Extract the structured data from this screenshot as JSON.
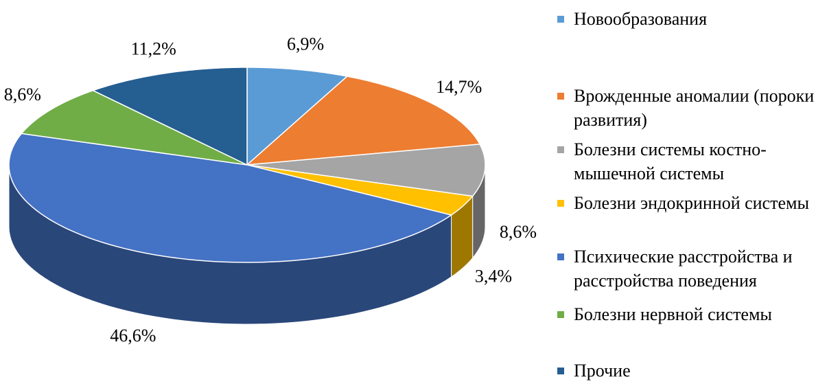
{
  "chart_data": {
    "type": "pie3d",
    "categories": [
      "Новообразования",
      "Врожденные аномалии (пороки развития)",
      "Болезни системы костно-мышечной системы",
      "Болезни эндокринной системы",
      "Психические расстройства и расстройства поведения",
      "Болезни нервной системы",
      "Прочие"
    ],
    "values": [
      6.9,
      14.7,
      8.6,
      3.4,
      46.6,
      8.6,
      11.2
    ],
    "value_labels": [
      "6,9%",
      "14,7%",
      "8,6%",
      "3,4%",
      "46,6%",
      "8,6%",
      "11,2%"
    ],
    "colors": [
      "#5b9bd5",
      "#ed7d31",
      "#a5a5a5",
      "#ffc000",
      "#4472c4",
      "#70ad47",
      "#255e91"
    ],
    "legend": "right"
  }
}
